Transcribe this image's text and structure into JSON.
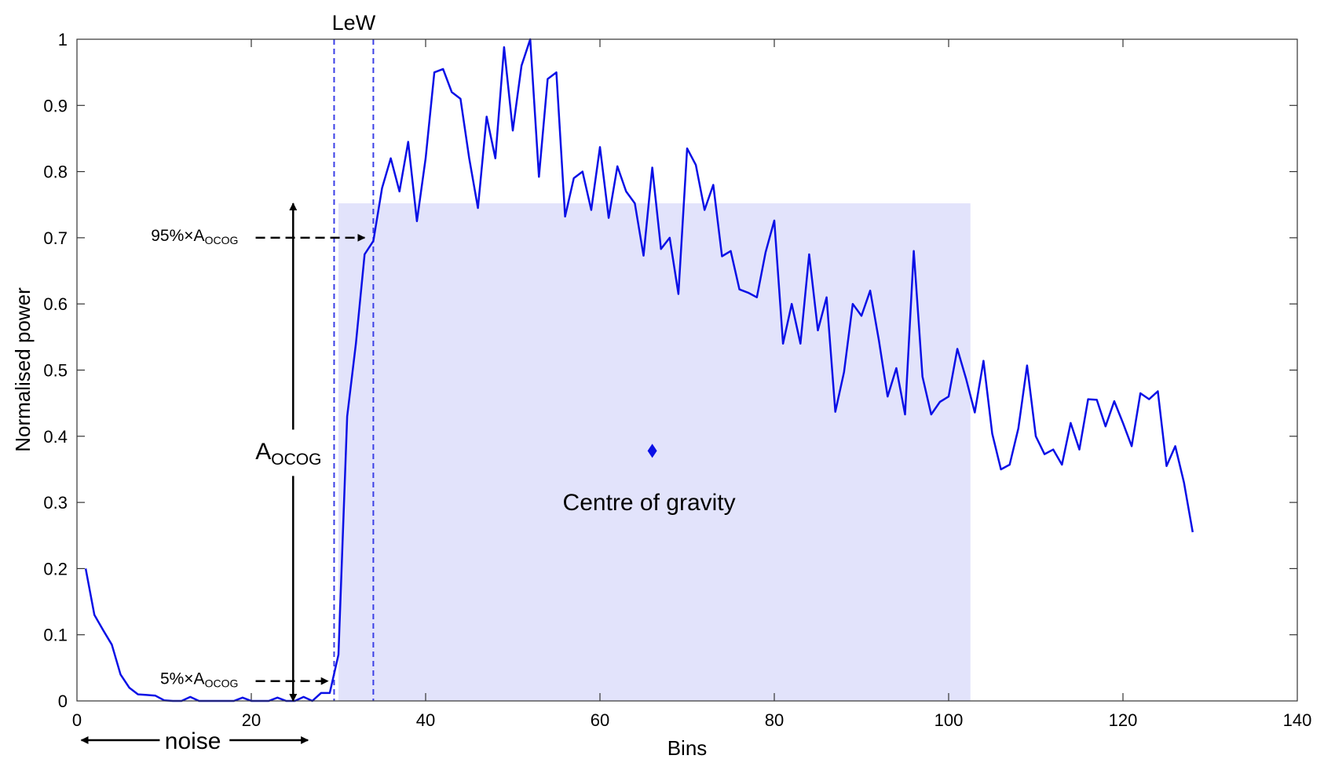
{
  "chart_data": {
    "type": "line",
    "title": "",
    "xlabel": "Bins",
    "ylabel": "Normalised power",
    "xlim": [
      0,
      140
    ],
    "ylim": [
      0,
      1
    ],
    "xticks": [
      0,
      20,
      40,
      60,
      80,
      100,
      120,
      140
    ],
    "yticks": [
      0,
      0.1,
      0.2,
      0.3,
      0.4,
      0.5,
      0.6,
      0.7,
      0.8,
      0.9,
      1
    ],
    "xtick_labels": [
      "0",
      "20",
      "40",
      "60",
      "80",
      "100",
      "120",
      "140"
    ],
    "ytick_labels": [
      "0",
      "0.1",
      "0.2",
      "0.3",
      "0.4",
      "0.5",
      "0.6",
      "0.7",
      "0.8",
      "0.9",
      "1"
    ],
    "grid": false,
    "line_color": "#0a10e6",
    "shade_color": "#e2e3fb",
    "series": [
      {
        "name": "",
        "x": [
          1,
          2,
          3,
          4,
          5,
          6,
          7,
          8,
          9,
          10,
          11,
          12,
          13,
          14,
          15,
          16,
          17,
          18,
          19,
          20,
          21,
          22,
          23,
          24,
          25,
          26,
          27,
          28,
          29,
          30,
          31,
          32,
          33,
          34,
          35,
          36,
          37,
          38,
          39,
          40,
          41,
          42,
          43,
          44,
          45,
          46,
          47,
          48,
          49,
          50,
          51,
          52,
          53,
          54,
          55,
          56,
          57,
          58,
          59,
          60,
          61,
          62,
          63,
          64,
          65,
          66,
          67,
          68,
          69,
          70,
          71,
          72,
          73,
          74,
          75,
          76,
          77,
          78,
          79,
          80,
          81,
          82,
          83,
          84,
          85,
          86,
          87,
          88,
          89,
          90,
          91,
          92,
          93,
          94,
          95,
          96,
          97,
          98,
          99,
          100,
          101,
          102,
          103,
          104,
          105,
          106,
          107,
          108,
          109,
          110,
          111,
          112,
          113,
          114,
          115,
          116,
          117,
          118,
          119,
          120,
          121,
          122,
          123,
          124,
          125,
          126,
          127,
          128
        ],
        "y": [
          0.2,
          0.13,
          0.107,
          0.085,
          0.04,
          0.02,
          0.01,
          0.009,
          0.008,
          0.001,
          0,
          0,
          0.006,
          0,
          0,
          0,
          0,
          0,
          0.005,
          0,
          0,
          0,
          0.005,
          0,
          0,
          0.006,
          0,
          0.012,
          0.012,
          0.07,
          0.43,
          0.54,
          0.675,
          0.695,
          0.775,
          0.82,
          0.77,
          0.845,
          0.725,
          0.82,
          0.95,
          0.955,
          0.92,
          0.91,
          0.82,
          0.745,
          0.883,
          0.82,
          0.988,
          0.862,
          0.96,
          1.0,
          0.792,
          0.94,
          0.95,
          0.732,
          0.79,
          0.8,
          0.742,
          0.837,
          0.73,
          0.808,
          0.77,
          0.752,
          0.673,
          0.806,
          0.683,
          0.7,
          0.615,
          0.835,
          0.81,
          0.742,
          0.78,
          0.672,
          0.68,
          0.622,
          0.617,
          0.61,
          0.678,
          0.726,
          0.54,
          0.6,
          0.54,
          0.675,
          0.56,
          0.61,
          0.437,
          0.497,
          0.6,
          0.582,
          0.62,
          0.545,
          0.46,
          0.503,
          0.433,
          0.68,
          0.49,
          0.433,
          0.452,
          0.46,
          0.532,
          0.487,
          0.436,
          0.514,
          0.404,
          0.35,
          0.357,
          0.412,
          0.507,
          0.4,
          0.373,
          0.38,
          0.357,
          0.42,
          0.38,
          0.456,
          0.455,
          0.415,
          0.453,
          0.42,
          0.385,
          0.465,
          0.456,
          0.468,
          0.355,
          0.385,
          0.33,
          0.255
        ]
      }
    ],
    "shaded_region": {
      "x": [
        30,
        102.5
      ],
      "y": [
        0,
        0.752
      ]
    },
    "lew_lines": [
      29.5,
      34
    ],
    "centre_of_gravity": {
      "x": 66,
      "y": 0.378
    },
    "annotations": {
      "lew": "LeW",
      "cog": "Centre of gravity",
      "aocog_main": "A",
      "aocog_sub": "OCOG",
      "pct95_prefix": "95%×A",
      "pct5_prefix": "5%×A",
      "small_sub": "OCOG",
      "noise": "noise",
      "level_95": 0.7,
      "level_5": 0.03
    }
  }
}
